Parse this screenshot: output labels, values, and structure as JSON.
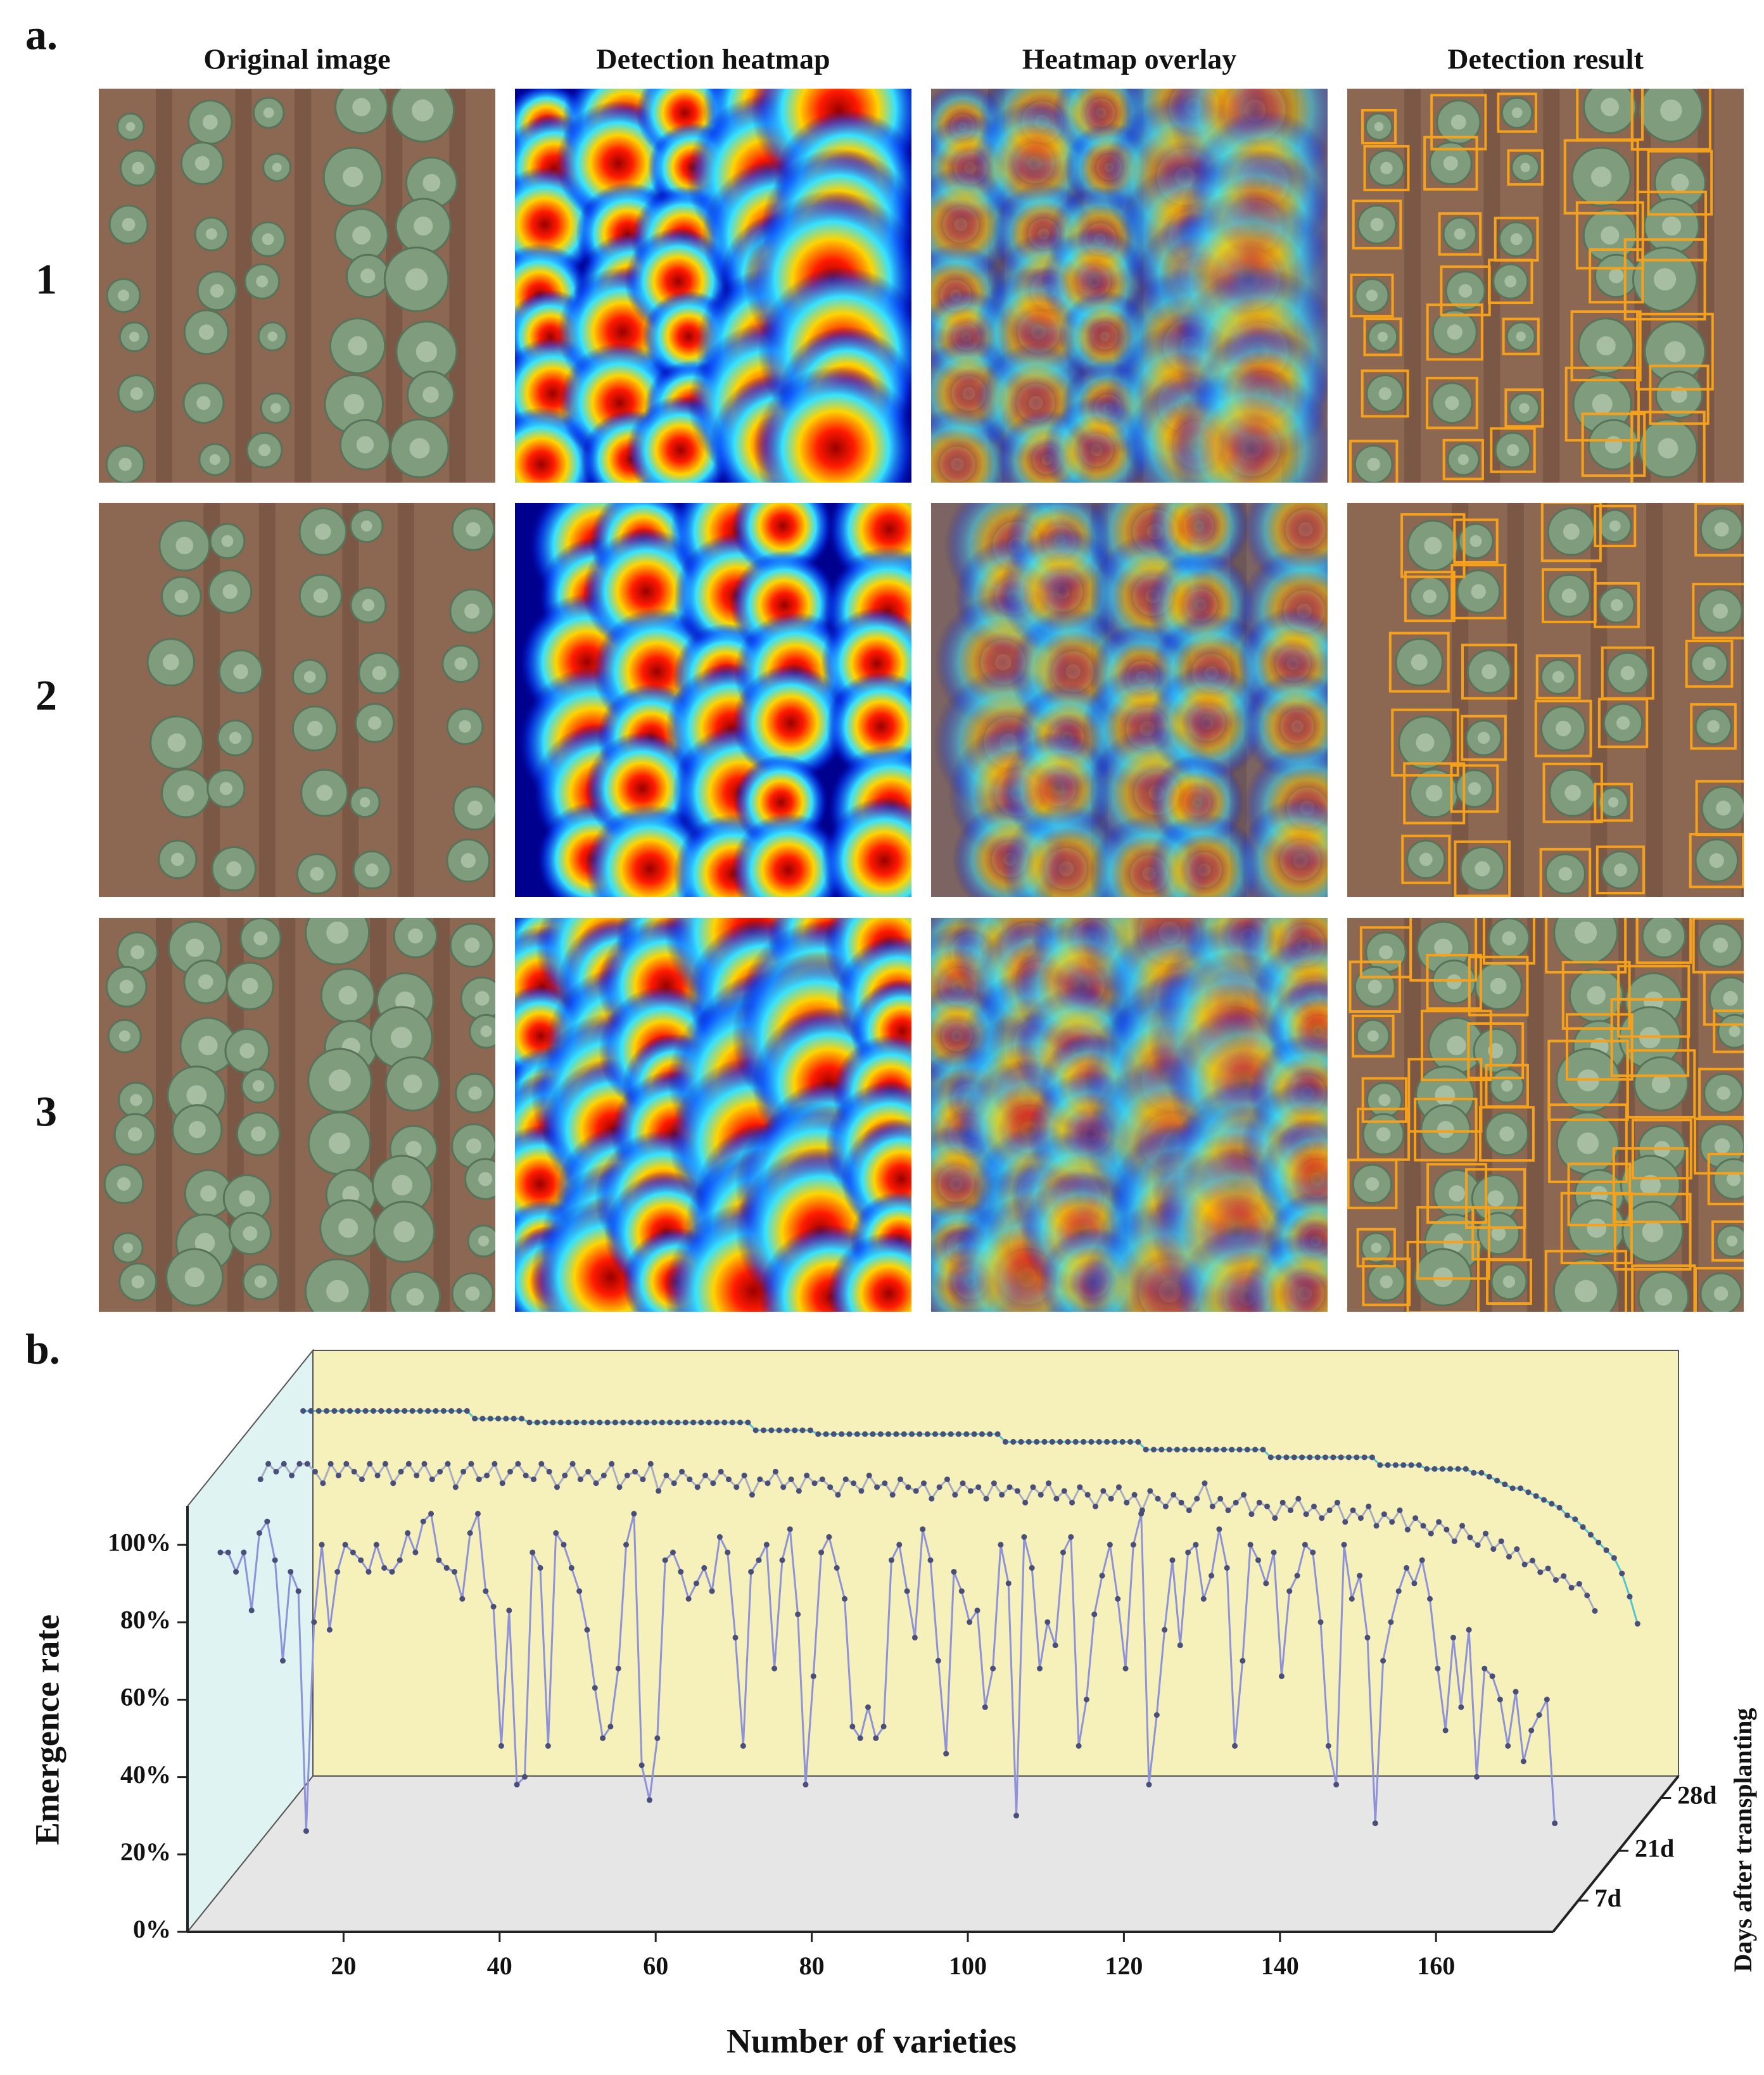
{
  "panel_a": {
    "label": "a.",
    "column_titles": [
      "Original image",
      "Detection heatmap",
      "Heatmap overlay",
      "Detection result"
    ],
    "row_labels": [
      "1",
      "2",
      "3"
    ]
  },
  "chart_data": {
    "type": "line",
    "label": "b.",
    "xlabel": "Number of varieties",
    "ylabel": "Emergence rate",
    "zlabel": "Days after transplanting",
    "xlim": [
      0,
      175
    ],
    "xticks": [
      20,
      40,
      60,
      80,
      100,
      120,
      140,
      160
    ],
    "ylim": [
      0,
      110
    ],
    "yticks": [
      {
        "value": 0,
        "label": "0%"
      },
      {
        "value": 20,
        "label": "20%"
      },
      {
        "value": 40,
        "label": "40%"
      },
      {
        "value": 60,
        "label": "60%"
      },
      {
        "value": 80,
        "label": "80%"
      },
      {
        "value": 100,
        "label": "100%"
      }
    ],
    "x": [
      1,
      2,
      3,
      4,
      5,
      6,
      7,
      8,
      9,
      10,
      11,
      12,
      13,
      14,
      15,
      16,
      17,
      18,
      19,
      20,
      21,
      22,
      23,
      24,
      25,
      26,
      27,
      28,
      29,
      30,
      31,
      32,
      33,
      34,
      35,
      36,
      37,
      38,
      39,
      40,
      41,
      42,
      43,
      44,
      45,
      46,
      47,
      48,
      49,
      50,
      51,
      52,
      53,
      54,
      55,
      56,
      57,
      58,
      59,
      60,
      61,
      62,
      63,
      64,
      65,
      66,
      67,
      68,
      69,
      70,
      71,
      72,
      73,
      74,
      75,
      76,
      77,
      78,
      79,
      80,
      81,
      82,
      83,
      84,
      85,
      86,
      87,
      88,
      89,
      90,
      91,
      92,
      93,
      94,
      95,
      96,
      97,
      98,
      99,
      100,
      101,
      102,
      103,
      104,
      105,
      106,
      107,
      108,
      109,
      110,
      111,
      112,
      113,
      114,
      115,
      116,
      117,
      118,
      119,
      120,
      121,
      122,
      123,
      124,
      125,
      126,
      127,
      128,
      129,
      130,
      131,
      132,
      133,
      134,
      135,
      136,
      137,
      138,
      139,
      140,
      141,
      142,
      143,
      144,
      145,
      146,
      147,
      148,
      149,
      150,
      151,
      152,
      153,
      154,
      155,
      156,
      157,
      158,
      159,
      160,
      161,
      162,
      163,
      164,
      165,
      166,
      167,
      168,
      169,
      170,
      171,
      172
    ],
    "series": [
      {
        "name": "7d",
        "color": "#8e92d8",
        "values": [
          90,
          90,
          85,
          90,
          75,
          95,
          98,
          88,
          62,
          85,
          80,
          18,
          72,
          92,
          70,
          85,
          92,
          90,
          88,
          85,
          92,
          86,
          85,
          88,
          95,
          90,
          98,
          100,
          88,
          86,
          85,
          78,
          95,
          100,
          80,
          76,
          40,
          75,
          30,
          32,
          90,
          86,
          40,
          95,
          92,
          86,
          80,
          70,
          55,
          42,
          45,
          60,
          92,
          100,
          35,
          26,
          42,
          88,
          90,
          85,
          78,
          82,
          86,
          80,
          94,
          90,
          68,
          40,
          85,
          88,
          92,
          60,
          88,
          96,
          74,
          30,
          58,
          90,
          94,
          86,
          78,
          45,
          42,
          50,
          42,
          45,
          88,
          92,
          80,
          68,
          96,
          88,
          62,
          38,
          85,
          80,
          72,
          75,
          50,
          60,
          92,
          82,
          22,
          94,
          86,
          60,
          72,
          66,
          90,
          94,
          40,
          52,
          74,
          84,
          92,
          78,
          60,
          92,
          100,
          30,
          48,
          70,
          88,
          66,
          90,
          92,
          78,
          84,
          96,
          86,
          40,
          62,
          92,
          88,
          82,
          90,
          58,
          80,
          84,
          92,
          90,
          72,
          40,
          30,
          92,
          78,
          84,
          68,
          20,
          62,
          72,
          80,
          86,
          82,
          88,
          78,
          60,
          44,
          68,
          50,
          70,
          32,
          60,
          58,
          52,
          40,
          54,
          36,
          44,
          48,
          52,
          20
        ]
      },
      {
        "name": "21d",
        "color": "#a7abc4",
        "values": [
          96,
          100,
          98,
          100,
          97,
          100,
          100,
          98,
          95,
          100,
          97,
          100,
          98,
          96,
          100,
          97,
          100,
          95,
          98,
          100,
          97,
          100,
          96,
          98,
          100,
          94,
          98,
          100,
          96,
          97,
          100,
          95,
          98,
          100,
          97,
          96,
          100,
          98,
          94,
          97,
          100,
          96,
          98,
          95,
          97,
          100,
          94,
          97,
          98,
          96,
          100,
          93,
          97,
          95,
          98,
          96,
          94,
          97,
          95,
          98,
          96,
          94,
          97,
          92,
          96,
          95,
          98,
          94,
          96,
          93,
          97,
          95,
          96,
          94,
          92,
          96,
          95,
          93,
          97,
          94,
          95,
          92,
          96,
          94,
          93,
          95,
          91,
          94,
          96,
          92,
          95,
          93,
          94,
          91,
          95,
          92,
          94,
          93,
          90,
          94,
          92,
          95,
          91,
          93,
          90,
          94,
          92,
          89,
          93,
          91,
          94,
          90,
          92,
          88,
          93,
          91,
          89,
          92,
          90,
          88,
          91,
          95,
          89,
          91,
          88,
          90,
          92,
          87,
          90,
          89,
          86,
          90,
          88,
          91,
          87,
          89,
          86,
          88,
          90,
          85,
          88,
          86,
          89,
          84,
          87,
          85,
          88,
          83,
          86,
          84,
          82,
          85,
          83,
          80,
          84,
          81,
          79,
          82,
          78,
          80,
          76,
          78,
          74,
          75,
          72,
          73,
          70,
          71,
          68,
          69,
          66,
          62
        ]
      },
      {
        "name": "28d",
        "color": "#52c6cf",
        "values": [
          100,
          100,
          100,
          100,
          100,
          100,
          100,
          100,
          100,
          100,
          100,
          100,
          100,
          100,
          100,
          100,
          100,
          100,
          100,
          100,
          100,
          100,
          98,
          98,
          98,
          98,
          98,
          98,
          98,
          97,
          97,
          97,
          97,
          97,
          97,
          97,
          97,
          97,
          97,
          97,
          97,
          97,
          97,
          97,
          97,
          97,
          97,
          97,
          97,
          97,
          97,
          97,
          97,
          97,
          97,
          97,
          97,
          97,
          95,
          95,
          95,
          95,
          95,
          95,
          95,
          95,
          94,
          94,
          94,
          94,
          94,
          94,
          94,
          94,
          94,
          94,
          94,
          94,
          94,
          94,
          94,
          94,
          94,
          94,
          94,
          94,
          94,
          94,
          94,
          94,
          92,
          92,
          92,
          92,
          92,
          92,
          92,
          92,
          92,
          92,
          92,
          92,
          92,
          92,
          92,
          92,
          92,
          92,
          90,
          90,
          90,
          90,
          90,
          90,
          90,
          90,
          90,
          90,
          90,
          90,
          90,
          90,
          90,
          90,
          88,
          88,
          88,
          88,
          88,
          88,
          88,
          88,
          88,
          88,
          88,
          88,
          88,
          88,
          86,
          86,
          86,
          86,
          86,
          86,
          85,
          85,
          85,
          85,
          85,
          85,
          84,
          84,
          83,
          82,
          81,
          80,
          80,
          79,
          78,
          77,
          76,
          75,
          73,
          72,
          70,
          68,
          66,
          64,
          62,
          58,
          52,
          45
        ]
      }
    ]
  }
}
